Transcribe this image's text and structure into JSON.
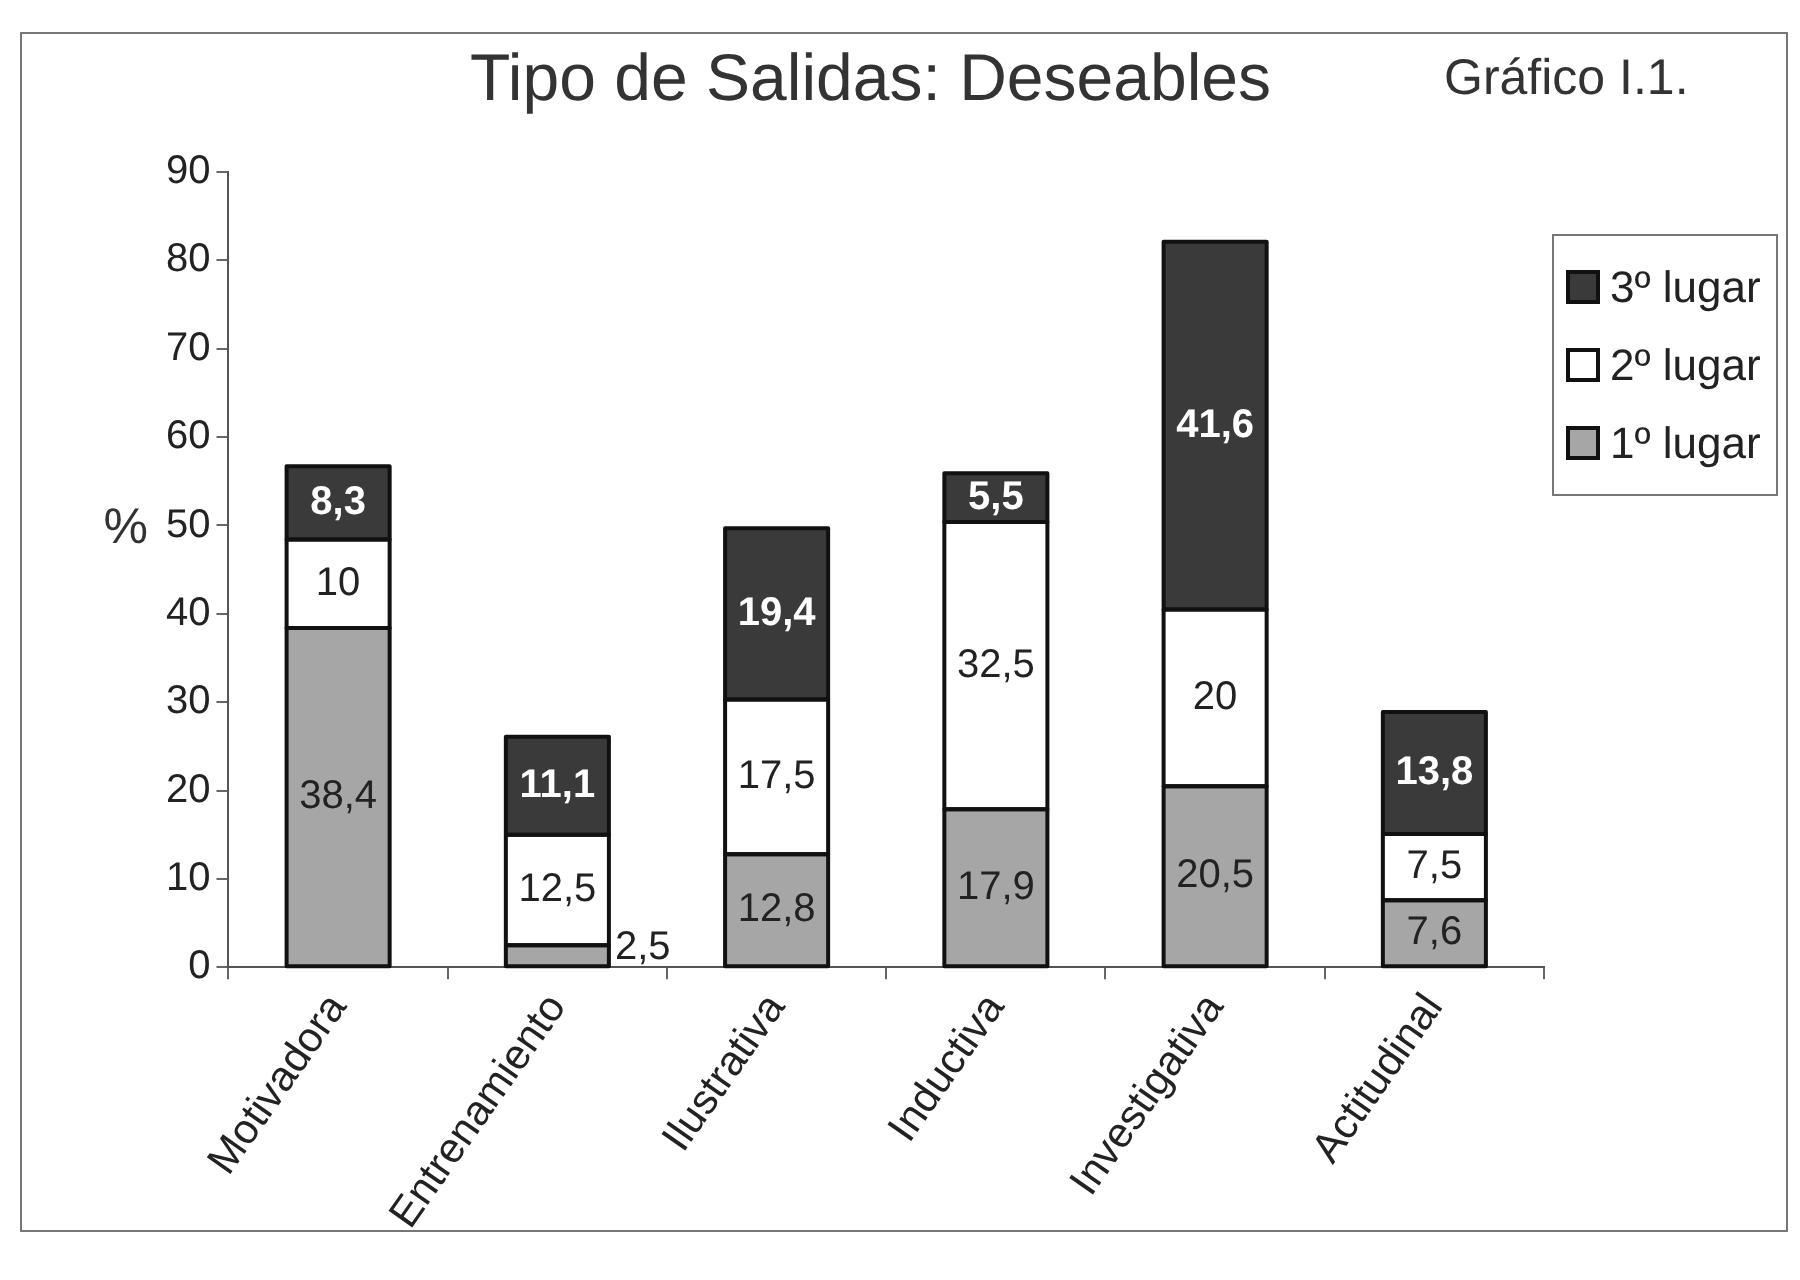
{
  "chart_data": {
    "type": "bar",
    "title": "Tipo de Salidas: Deseables",
    "subtitle": "Gráfico I.1.",
    "ylabel": "%",
    "categories": [
      "Motivadora",
      "Entrenamiento",
      "Ilustrativa",
      "Inductiva",
      "Investigativa",
      "Actitudinal"
    ],
    "stacked": true,
    "series": [
      {
        "name": "1º lugar",
        "color": "#a6a6a6",
        "values": [
          38.4,
          2.5,
          12.8,
          17.9,
          20.5,
          7.6
        ],
        "value_labels": [
          "38,4",
          "2,5",
          "12,8",
          "17,9",
          "20,5",
          "7,6"
        ]
      },
      {
        "name": "2º lugar",
        "color": "#ffffff",
        "values": [
          10,
          12.5,
          17.5,
          32.5,
          20,
          7.5
        ],
        "value_labels": [
          "10",
          "12,5",
          "17,5",
          "32,5",
          "20",
          "7,5"
        ]
      },
      {
        "name": "3º lugar",
        "color": "#3a3a3a",
        "values": [
          8.3,
          11.1,
          19.4,
          5.5,
          41.6,
          13.8
        ],
        "value_labels": [
          "8,3",
          "11,1",
          "19,4",
          "5,5",
          "41,6",
          "13,8"
        ]
      }
    ],
    "ylim": [
      0,
      90
    ],
    "yticks": [
      0,
      10,
      20,
      30,
      40,
      50,
      60,
      70,
      80,
      90
    ],
    "grid": false,
    "legend": "top right"
  }
}
